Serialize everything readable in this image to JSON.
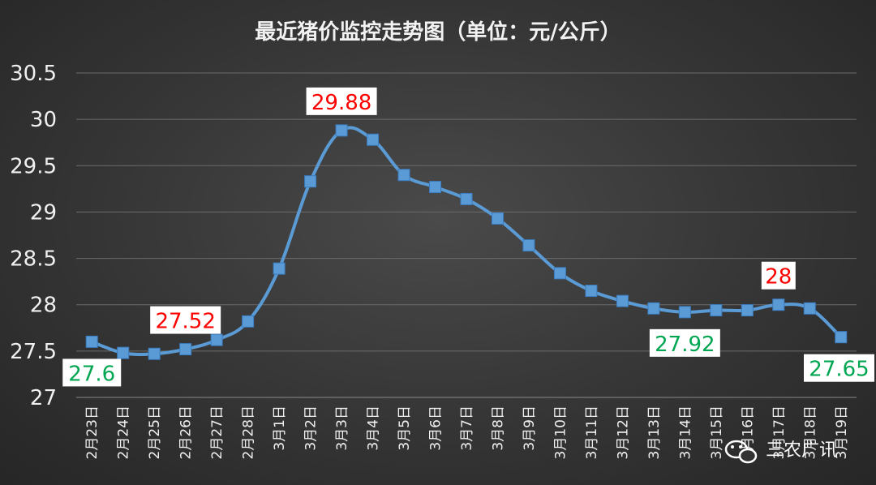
{
  "chart_data": {
    "type": "line",
    "title": "最近猪价监控走势图（单位：元/公斤）",
    "categories": [
      "2月23日",
      "2月24日",
      "2月25日",
      "2月26日",
      "2月27日",
      "2月28日",
      "3月1日",
      "3月2日",
      "3月3日",
      "3月4日",
      "3月5日",
      "3月6日",
      "3月7日",
      "3月8日",
      "3月9日",
      "3月10日",
      "3月11日",
      "3月12日",
      "3月13日",
      "3月14日",
      "3月15日",
      "3月16日",
      "3月17日",
      "3月18日",
      "3月19日"
    ],
    "series": [
      {
        "values": [
          27.6,
          27.48,
          27.47,
          27.52,
          27.62,
          27.82,
          28.39,
          29.33,
          29.88,
          29.78,
          29.4,
          29.27,
          29.14,
          28.93,
          28.64,
          28.34,
          28.15,
          28.04,
          27.96,
          27.92,
          27.94,
          27.94,
          28.0,
          27.96,
          27.65
        ]
      }
    ],
    "ylim": [
      27,
      30.5
    ],
    "yticks": [
      "27",
      "27.5",
      "28",
      "28.5",
      "29",
      "29.5",
      "30",
      "30.5"
    ],
    "grid": true,
    "legend": "none",
    "colors": {
      "line": "#5b9bd5",
      "max_label": "#ff0000",
      "min_label": "#00a651"
    },
    "data_labels": [
      {
        "index": 0,
        "text": "27.6",
        "kind": "min"
      },
      {
        "index": 3,
        "text": "27.52",
        "kind": "max"
      },
      {
        "index": 8,
        "text": "29.88",
        "kind": "max"
      },
      {
        "index": 19,
        "text": "27.92",
        "kind": "min"
      },
      {
        "index": 22,
        "text": "28",
        "kind": "max"
      },
      {
        "index": 24,
        "text": "27.65",
        "kind": "min"
      }
    ]
  },
  "watermark": {
    "text": "三农广讯"
  }
}
